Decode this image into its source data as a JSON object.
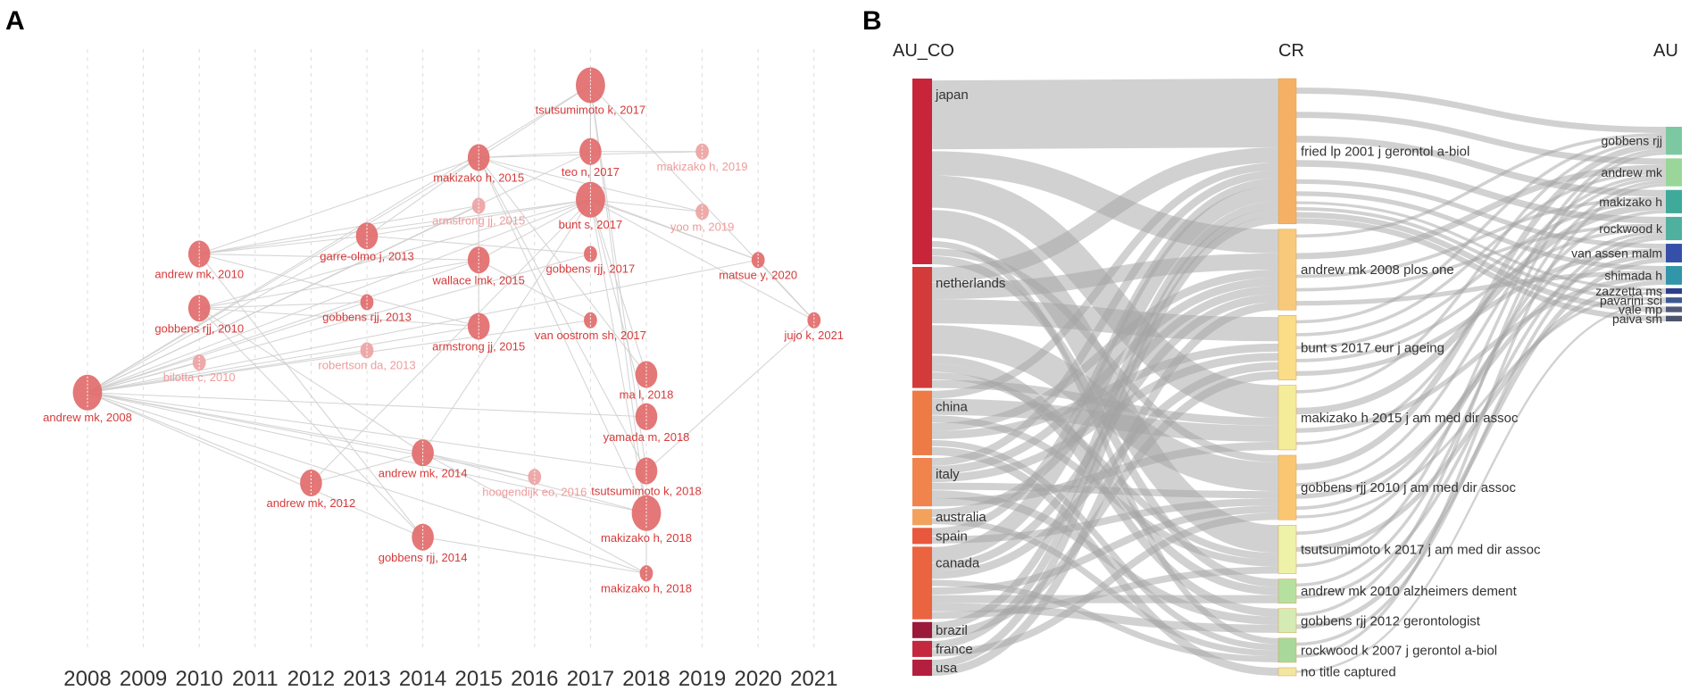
{
  "panel_a": {
    "letter": "A",
    "years": [
      "2008",
      "2009",
      "2010",
      "2011",
      "2012",
      "2013",
      "2014",
      "2015",
      "2016",
      "2017",
      "2018",
      "2019",
      "2020",
      "2021"
    ],
    "nodes": [
      {
        "id": "n0",
        "label": "andrew mk, 2008",
        "year": 2008,
        "row": 0.57,
        "size": 3,
        "faint": false
      },
      {
        "id": "n1",
        "label": "andrew mk, 2010",
        "year": 2010,
        "row": 0.34,
        "size": 2,
        "faint": false
      },
      {
        "id": "n2",
        "label": "gobbens rjj, 2010",
        "year": 2010,
        "row": 0.43,
        "size": 2,
        "faint": false
      },
      {
        "id": "n3",
        "label": "bilotta c, 2010",
        "year": 2010,
        "row": 0.52,
        "size": 1,
        "faint": true
      },
      {
        "id": "n4",
        "label": "andrew mk, 2012",
        "year": 2012,
        "row": 0.72,
        "size": 2,
        "faint": false
      },
      {
        "id": "n5",
        "label": "garre-olmo j, 2013",
        "year": 2013,
        "row": 0.31,
        "size": 2,
        "faint": false
      },
      {
        "id": "n6",
        "label": "gobbens rjj, 2013",
        "year": 2013,
        "row": 0.42,
        "size": 1,
        "faint": false
      },
      {
        "id": "n7",
        "label": "robertson da, 2013",
        "year": 2013,
        "row": 0.5,
        "size": 1,
        "faint": true
      },
      {
        "id": "n8",
        "label": "andrew mk, 2014",
        "year": 2014,
        "row": 0.67,
        "size": 2,
        "faint": false
      },
      {
        "id": "n9",
        "label": "gobbens rjj, 2014",
        "year": 2014,
        "row": 0.81,
        "size": 2,
        "faint": false
      },
      {
        "id": "n10",
        "label": "makizako h, 2015",
        "year": 2015,
        "row": 0.18,
        "size": 2,
        "faint": false
      },
      {
        "id": "n11",
        "label": "armstrong jj, 2015",
        "year": 2015,
        "row": 0.26,
        "size": 1,
        "faint": true
      },
      {
        "id": "n12",
        "label": "wallace lmk, 2015",
        "year": 2015,
        "row": 0.35,
        "size": 2,
        "faint": false
      },
      {
        "id": "n13",
        "label": "armstrong jj, 2015",
        "year": 2015,
        "row": 0.46,
        "size": 2,
        "faint": false
      },
      {
        "id": "n14",
        "label": "hoogendijk eo, 2016",
        "year": 2016,
        "row": 0.71,
        "size": 1,
        "faint": true
      },
      {
        "id": "n15",
        "label": "tsutsumimoto k, 2017",
        "year": 2017,
        "row": 0.06,
        "size": 3,
        "faint": false
      },
      {
        "id": "n16",
        "label": "teo n, 2017",
        "year": 2017,
        "row": 0.17,
        "size": 2,
        "faint": false
      },
      {
        "id": "n17",
        "label": "bunt s, 2017",
        "year": 2017,
        "row": 0.25,
        "size": 3,
        "faint": false
      },
      {
        "id": "n18",
        "label": "gobbens rjj, 2017",
        "year": 2017,
        "row": 0.34,
        "size": 1,
        "faint": false
      },
      {
        "id": "n19",
        "label": "van oostrom sh, 2017",
        "year": 2017,
        "row": 0.45,
        "size": 1,
        "faint": false
      },
      {
        "id": "n20",
        "label": "ma l, 2018",
        "year": 2018,
        "row": 0.54,
        "size": 2,
        "faint": false
      },
      {
        "id": "n21",
        "label": "yamada m, 2018",
        "year": 2018,
        "row": 0.61,
        "size": 2,
        "faint": false
      },
      {
        "id": "n22",
        "label": "tsutsumimoto k, 2018",
        "year": 2018,
        "row": 0.7,
        "size": 2,
        "faint": false
      },
      {
        "id": "n23",
        "label": "makizako h, 2018",
        "year": 2018,
        "row": 0.77,
        "size": 3,
        "faint": false
      },
      {
        "id": "n24",
        "label": "makizako h, 2018",
        "year": 2018,
        "row": 0.87,
        "size": 1,
        "faint": false
      },
      {
        "id": "n25",
        "label": "makizako h, 2019",
        "year": 2019,
        "row": 0.17,
        "size": 1,
        "faint": true
      },
      {
        "id": "n26",
        "label": "yoo m, 2019",
        "year": 2019,
        "row": 0.27,
        "size": 1,
        "faint": true
      },
      {
        "id": "n27",
        "label": "matsue y, 2020",
        "year": 2020,
        "row": 0.35,
        "size": 1,
        "faint": false
      },
      {
        "id": "n28",
        "label": "jujo k, 2021",
        "year": 2021,
        "row": 0.45,
        "size": 1,
        "faint": false
      }
    ],
    "edges": [
      [
        "n15",
        "n10"
      ],
      [
        "n15",
        "n16"
      ],
      [
        "n15",
        "n0"
      ],
      [
        "n15",
        "n17"
      ],
      [
        "n10",
        "n0"
      ],
      [
        "n10",
        "n5"
      ],
      [
        "n10",
        "n1"
      ],
      [
        "n10",
        "n13"
      ],
      [
        "n16",
        "n0"
      ],
      [
        "n16",
        "n10"
      ],
      [
        "n16",
        "n17"
      ],
      [
        "n17",
        "n0"
      ],
      [
        "n17",
        "n1"
      ],
      [
        "n17",
        "n5"
      ],
      [
        "n17",
        "n12"
      ],
      [
        "n17",
        "n4"
      ],
      [
        "n17",
        "n2"
      ],
      [
        "n17",
        "n8"
      ],
      [
        "n12",
        "n0"
      ],
      [
        "n12",
        "n1"
      ],
      [
        "n12",
        "n2"
      ],
      [
        "n13",
        "n0"
      ],
      [
        "n13",
        "n1"
      ],
      [
        "n13",
        "n2"
      ],
      [
        "n5",
        "n0"
      ],
      [
        "n5",
        "n1"
      ],
      [
        "n6",
        "n2"
      ],
      [
        "n6",
        "n0"
      ],
      [
        "n4",
        "n0"
      ],
      [
        "n8",
        "n0"
      ],
      [
        "n8",
        "n2"
      ],
      [
        "n8",
        "n4"
      ],
      [
        "n9",
        "n2"
      ],
      [
        "n9",
        "n0"
      ],
      [
        "n9",
        "n1"
      ],
      [
        "n14",
        "n0"
      ],
      [
        "n14",
        "n8"
      ],
      [
        "n20",
        "n17"
      ],
      [
        "n20",
        "n10"
      ],
      [
        "n21",
        "n17"
      ],
      [
        "n21",
        "n0"
      ],
      [
        "n22",
        "n15"
      ],
      [
        "n22",
        "n10"
      ],
      [
        "n22",
        "n0"
      ],
      [
        "n23",
        "n15"
      ],
      [
        "n23",
        "n10"
      ],
      [
        "n23",
        "n17"
      ],
      [
        "n23",
        "n0"
      ],
      [
        "n23",
        "n8"
      ],
      [
        "n24",
        "n0"
      ],
      [
        "n24",
        "n9"
      ],
      [
        "n24",
        "n8"
      ],
      [
        "n25",
        "n10"
      ],
      [
        "n25",
        "n16"
      ],
      [
        "n26",
        "n17"
      ],
      [
        "n26",
        "n10"
      ],
      [
        "n27",
        "n17"
      ],
      [
        "n27",
        "n10"
      ],
      [
        "n27",
        "n0"
      ],
      [
        "n28",
        "n27"
      ],
      [
        "n28",
        "n15"
      ],
      [
        "n28",
        "n17"
      ],
      [
        "n28",
        "n22"
      ],
      [
        "n19",
        "n0"
      ],
      [
        "n19",
        "n12"
      ],
      [
        "n18",
        "n0"
      ],
      [
        "n18",
        "n5"
      ],
      [
        "n3",
        "n0"
      ],
      [
        "n7",
        "n0"
      ],
      [
        "n11",
        "n0"
      ],
      [
        "n11",
        "n1"
      ],
      [
        "n24",
        "n23"
      ]
    ]
  },
  "panel_b": {
    "letter": "B",
    "headers": {
      "left": "AU_CO",
      "middle": "CR",
      "right": "AU"
    },
    "countries": [
      {
        "name": "japan",
        "weight": 23,
        "color": "#c8243a"
      },
      {
        "name": "netherlands",
        "weight": 15,
        "color": "#d33a3a"
      },
      {
        "name": "china",
        "weight": 8,
        "color": "#ee7a45"
      },
      {
        "name": "italy",
        "weight": 6,
        "color": "#f0844c"
      },
      {
        "name": "australia",
        "weight": 2,
        "color": "#f3a25c"
      },
      {
        "name": "spain",
        "weight": 2,
        "color": "#e8583c"
      },
      {
        "name": "canada",
        "weight": 9,
        "color": "#ea6440"
      },
      {
        "name": "brazil",
        "weight": 2,
        "color": "#9b1a3c"
      },
      {
        "name": "france",
        "weight": 2,
        "color": "#c4283e"
      },
      {
        "name": "usa",
        "weight": 2,
        "color": "#b41f3f"
      }
    ],
    "references": [
      {
        "name": "fried lp 2001 j gerontol a-biol",
        "weight": 18,
        "color": "#f6b066"
      },
      {
        "name": "andrew mk 2008 plos one",
        "weight": 10,
        "color": "#f8c97a"
      },
      {
        "name": "bunt s 2017 eur j ageing",
        "weight": 8,
        "color": "#fbdd88"
      },
      {
        "name": "makizako h 2015 j am med dir assoc",
        "weight": 8,
        "color": "#f5ec9a"
      },
      {
        "name": "gobbens rjj 2010 j am med dir assoc",
        "weight": 8,
        "color": "#fbc672"
      },
      {
        "name": "tsutsumimoto k 2017 j am med dir assoc",
        "weight": 6,
        "color": "#eef2a8"
      },
      {
        "name": "andrew mk 2010 alzheimers dement",
        "weight": 3,
        "color": "#b6e0a0"
      },
      {
        "name": "gobbens rjj 2012 gerontologist",
        "weight": 3,
        "color": "#d4ecb4"
      },
      {
        "name": "rockwood k 2007 j gerontol a-biol",
        "weight": 3,
        "color": "#a8d89a"
      },
      {
        "name": "no title captured",
        "weight": 1,
        "color": "#f2e6a0"
      }
    ],
    "authors": [
      {
        "name": "gobbens rjj",
        "weight": 3,
        "color": "#7cc8a0"
      },
      {
        "name": "andrew mk",
        "weight": 3,
        "color": "#9ad69a"
      },
      {
        "name": "makizako h",
        "weight": 2.5,
        "color": "#3fa99a"
      },
      {
        "name": "rockwood k",
        "weight": 2.5,
        "color": "#4fb0a0"
      },
      {
        "name": "van assen malm",
        "weight": 2,
        "color": "#3550a8"
      },
      {
        "name": "shimada h",
        "weight": 2,
        "color": "#3196a8"
      },
      {
        "name": "zazzetta ms",
        "weight": 0.6,
        "color": "#2d3f8c"
      },
      {
        "name": "pavarini sci",
        "weight": 0.6,
        "color": "#3c5a90"
      },
      {
        "name": "vale mp",
        "weight": 0.6,
        "color": "#505a7a"
      },
      {
        "name": "paiva sm",
        "weight": 0.6,
        "color": "#4c5570"
      }
    ],
    "flows_left": [
      [
        0,
        0,
        9
      ],
      [
        0,
        1,
        3
      ],
      [
        0,
        3,
        4
      ],
      [
        0,
        5,
        4
      ],
      [
        0,
        8,
        1
      ],
      [
        0,
        4,
        1
      ],
      [
        0,
        6,
        1
      ],
      [
        1,
        0,
        2
      ],
      [
        1,
        1,
        2
      ],
      [
        1,
        2,
        3
      ],
      [
        1,
        4,
        4
      ],
      [
        1,
        6,
        1
      ],
      [
        1,
        7,
        1
      ],
      [
        1,
        5,
        1
      ],
      [
        1,
        3,
        1
      ],
      [
        2,
        0,
        1
      ],
      [
        2,
        3,
        2
      ],
      [
        2,
        5,
        1
      ],
      [
        2,
        1,
        1
      ],
      [
        2,
        2,
        1
      ],
      [
        2,
        8,
        1
      ],
      [
        2,
        9,
        1
      ],
      [
        3,
        0,
        1
      ],
      [
        3,
        1,
        1
      ],
      [
        3,
        2,
        1
      ],
      [
        3,
        4,
        1
      ],
      [
        3,
        7,
        1
      ],
      [
        3,
        3,
        1
      ],
      [
        4,
        1,
        1
      ],
      [
        4,
        8,
        1
      ],
      [
        5,
        0,
        1
      ],
      [
        5,
        4,
        1
      ],
      [
        6,
        0,
        2
      ],
      [
        6,
        1,
        1
      ],
      [
        6,
        2,
        1
      ],
      [
        6,
        8,
        1
      ],
      [
        6,
        4,
        1
      ],
      [
        6,
        6,
        1
      ],
      [
        6,
        7,
        1
      ],
      [
        6,
        5,
        1
      ],
      [
        7,
        0,
        1
      ],
      [
        7,
        2,
        1
      ],
      [
        8,
        0,
        1
      ],
      [
        8,
        4,
        1
      ],
      [
        9,
        0,
        1
      ],
      [
        9,
        1,
        1
      ]
    ],
    "flows_right": [
      [
        0,
        0,
        2
      ],
      [
        0,
        1,
        2
      ],
      [
        0,
        2,
        2
      ],
      [
        0,
        3,
        2
      ],
      [
        0,
        4,
        1
      ],
      [
        0,
        5,
        1
      ],
      [
        0,
        6,
        0.5
      ],
      [
        0,
        7,
        0.5
      ],
      [
        0,
        8,
        0.5
      ],
      [
        0,
        9,
        0.5
      ],
      [
        1,
        0,
        1
      ],
      [
        1,
        1,
        2
      ],
      [
        1,
        2,
        1
      ],
      [
        1,
        3,
        1
      ],
      [
        1,
        5,
        1
      ],
      [
        2,
        0,
        1
      ],
      [
        2,
        1,
        1
      ],
      [
        2,
        2,
        1
      ],
      [
        2,
        3,
        1
      ],
      [
        2,
        4,
        1
      ],
      [
        3,
        0,
        1
      ],
      [
        3,
        2,
        2
      ],
      [
        3,
        5,
        1
      ],
      [
        3,
        1,
        1
      ],
      [
        4,
        0,
        2
      ],
      [
        4,
        1,
        1
      ],
      [
        4,
        4,
        1
      ],
      [
        4,
        3,
        1
      ],
      [
        4,
        6,
        0.5
      ],
      [
        5,
        2,
        1
      ],
      [
        5,
        5,
        1
      ],
      [
        5,
        0,
        1
      ],
      [
        6,
        1,
        1
      ],
      [
        6,
        3,
        1
      ],
      [
        7,
        0,
        1
      ],
      [
        7,
        4,
        1
      ],
      [
        8,
        3,
        1
      ],
      [
        8,
        1,
        1
      ],
      [
        9,
        7,
        0.3
      ]
    ]
  }
}
